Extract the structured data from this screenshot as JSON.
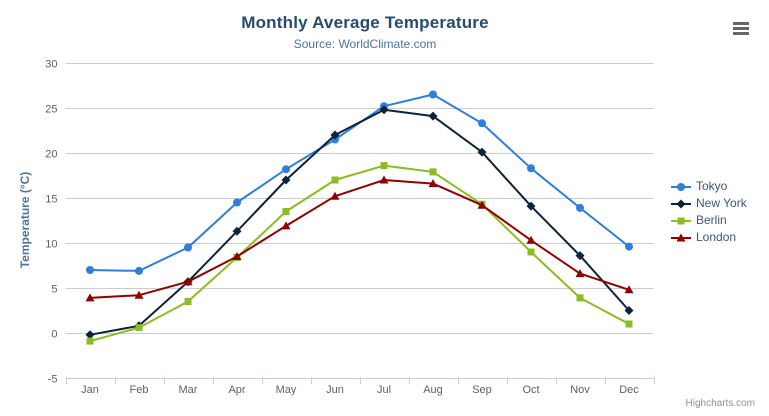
{
  "chart": {
    "title": "Monthly Average Temperature",
    "subtitle": "Source: WorldClimate.com",
    "credits": "Highcharts.com"
  },
  "chart_data": {
    "type": "line",
    "title": "Monthly Average Temperature",
    "subtitle": "Source: WorldClimate.com",
    "categories": [
      "Jan",
      "Feb",
      "Mar",
      "Apr",
      "May",
      "Jun",
      "Jul",
      "Aug",
      "Sep",
      "Oct",
      "Nov",
      "Dec"
    ],
    "series": [
      {
        "name": "Tokyo",
        "color": "#2f7ed8",
        "marker": "circle",
        "values": [
          7.0,
          6.9,
          9.5,
          14.5,
          18.2,
          21.5,
          25.2,
          26.5,
          23.3,
          18.3,
          13.9,
          9.6
        ]
      },
      {
        "name": "New York",
        "color": "#0d233a",
        "marker": "diamond",
        "values": [
          -0.2,
          0.8,
          5.7,
          11.3,
          17.0,
          22.0,
          24.8,
          24.1,
          20.1,
          14.1,
          8.6,
          2.5
        ]
      },
      {
        "name": "Berlin",
        "color": "#8bbc21",
        "marker": "square",
        "values": [
          -0.9,
          0.6,
          3.5,
          8.4,
          13.5,
          17.0,
          18.6,
          17.9,
          14.3,
          9.0,
          3.9,
          1.0
        ]
      },
      {
        "name": "London",
        "color": "#910000",
        "marker": "triangle",
        "values": [
          3.9,
          4.2,
          5.7,
          8.5,
          11.9,
          15.2,
          17.0,
          16.6,
          14.2,
          10.3,
          6.6,
          4.8
        ]
      }
    ],
    "xlabel": "",
    "ylabel": "Temperature (°C)",
    "ylim": [
      -5,
      30
    ],
    "ytick_step": 5,
    "yticks": [
      -5,
      0,
      5,
      10,
      15,
      20,
      25,
      30
    ],
    "grid": true,
    "legend_position": "right"
  },
  "colors": {
    "title": "#274b6d",
    "subtitle": "#4d759e",
    "axis_title": "#4d759e",
    "tick_label": "#606060",
    "grid": "#cccccc",
    "axis_line": "#c0d0e0",
    "legend_text": "#3e576f",
    "credits": "#909090",
    "context_button": "#666666",
    "background": "#ffffff"
  }
}
